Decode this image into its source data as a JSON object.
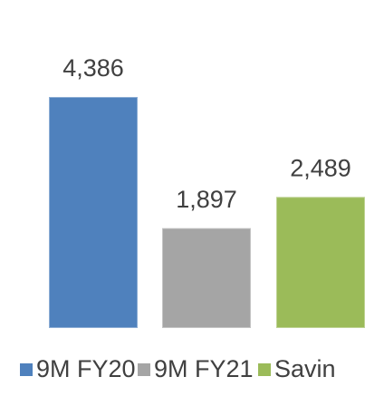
{
  "chart_data": {
    "type": "bar",
    "series": [
      {
        "name": "9M FY20",
        "color": "#4f81bd",
        "values": [
          4386
        ],
        "value_labels": [
          "4,386"
        ]
      },
      {
        "name": "9M FY21",
        "color": "#a5a5a5",
        "values": [
          1897
        ],
        "value_labels": [
          "1,897"
        ]
      },
      {
        "name": "Savin",
        "color": "#9bbb59",
        "values": [
          2489
        ],
        "value_labels": [
          "2,489"
        ]
      }
    ]
  }
}
